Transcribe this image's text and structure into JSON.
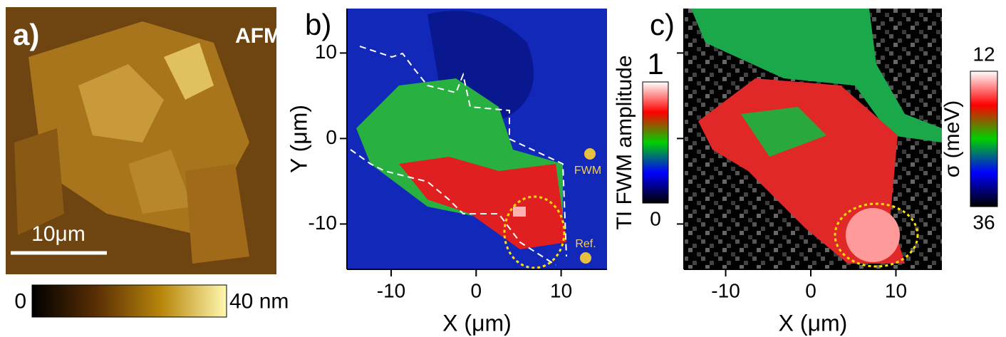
{
  "chart_data": [
    {
      "type": "image",
      "label": "a)",
      "title": "AFM",
      "scale_bar": "10μm",
      "colorbar": {
        "orientation": "horizontal",
        "clim": [
          0,
          40
        ],
        "colors": [
          "#000000",
          "#5a2f05",
          "#b8860b",
          "#fff8b0"
        ],
        "ticks": [
          0,
          {
            "value": 40,
            "label": "40 nm"
          }
        ]
      }
    },
    {
      "type": "heatmap",
      "label": "b)",
      "xlabel": "X (μm)",
      "ylabel": "Y (μm)",
      "xlim": [
        -15.2,
        15.4
      ],
      "ylim": [
        -15.3,
        15.2
      ],
      "xticks": [
        -10,
        0,
        10
      ],
      "yticks": [
        -10,
        0,
        10
      ],
      "show_ytick_labels": true,
      "annotations": [
        "FWM",
        "Ref."
      ],
      "colorbar": {
        "orientation": "vertical",
        "label": "TI FWM amplitude",
        "clim": [
          0,
          1
        ],
        "colors": [
          "#000000",
          "#0000ff",
          "#00d000",
          "#ff0000",
          "#ffffff"
        ],
        "ticks": [
          0,
          1
        ]
      }
    },
    {
      "type": "heatmap",
      "label": "c)",
      "xlabel": "X (μm)",
      "xlim": [
        -14.9,
        15.4
      ],
      "ylim": [
        -15.3,
        15.2
      ],
      "xticks": [
        -10,
        0,
        10
      ],
      "yticks": [
        -10,
        0,
        10
      ],
      "show_ytick_labels": false,
      "colorbar": {
        "orientation": "vertical",
        "label": "σ (meV)",
        "clim": [
          36,
          12
        ],
        "colors": [
          "#000000",
          "#0000ff",
          "#00d000",
          "#ff0000",
          "#ffffff"
        ],
        "ticks": [
          12,
          36
        ]
      }
    }
  ]
}
